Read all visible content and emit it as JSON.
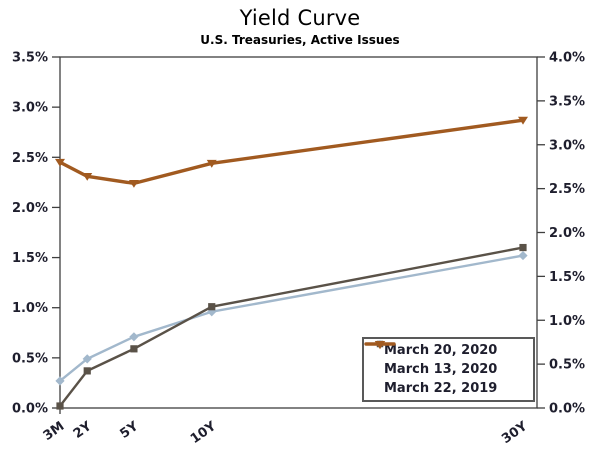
{
  "title": "Yield Curve",
  "subtitle": "U.S. Treasuries, Active Issues",
  "chart_data": {
    "type": "line",
    "title": "Yield Curve",
    "subtitle": "U.S. Treasuries, Active Issues",
    "x_categories": [
      "3M",
      "2Y",
      "5Y",
      "10Y",
      "30Y"
    ],
    "x_years": [
      0.25,
      2,
      5,
      10,
      30
    ],
    "x_scale": "linear-in-years",
    "grid": false,
    "legend_position": "inside-bottom-right",
    "left_axis": {
      "min": 0.0,
      "max": 3.5,
      "step": 0.5,
      "format": "percent",
      "tick_labels": [
        "3.5%",
        "3.0%",
        "2.5%",
        "2.0%",
        "1.5%",
        "1.0%",
        "0.5%",
        "0.0%"
      ]
    },
    "right_axis": {
      "min": 0.0,
      "max": 4.0,
      "step": 0.5,
      "format": "percent",
      "tick_labels": [
        "4.0%",
        "3.5%",
        "3.0%",
        "2.5%",
        "2.0%",
        "1.5%",
        "1.0%",
        "0.5%",
        "0.0%"
      ]
    },
    "series": [
      {
        "name": "March 20, 2020",
        "axis": "left",
        "color": "#5a5248",
        "marker": "square",
        "line_width": 2.4,
        "values": [
          0.02,
          0.37,
          0.59,
          1.01,
          1.6
        ]
      },
      {
        "name": "March 13, 2020",
        "axis": "left",
        "color": "#a2b8cc",
        "marker": "diamond",
        "line_width": 2.4,
        "values": [
          0.27,
          0.49,
          0.71,
          0.96,
          1.52
        ]
      },
      {
        "name": "March 22, 2019",
        "axis": "left",
        "color": "#a15a20",
        "marker": "triangle-down",
        "line_width": 3.4,
        "values": [
          2.45,
          2.31,
          2.24,
          2.44,
          2.87
        ]
      }
    ],
    "draw_order": [
      1,
      0,
      2
    ],
    "colors": {
      "axis_line": "#3f3f3f",
      "tick_label": "#1e1e2d",
      "legend_border": "#595959",
      "background": "#ffffff"
    }
  }
}
